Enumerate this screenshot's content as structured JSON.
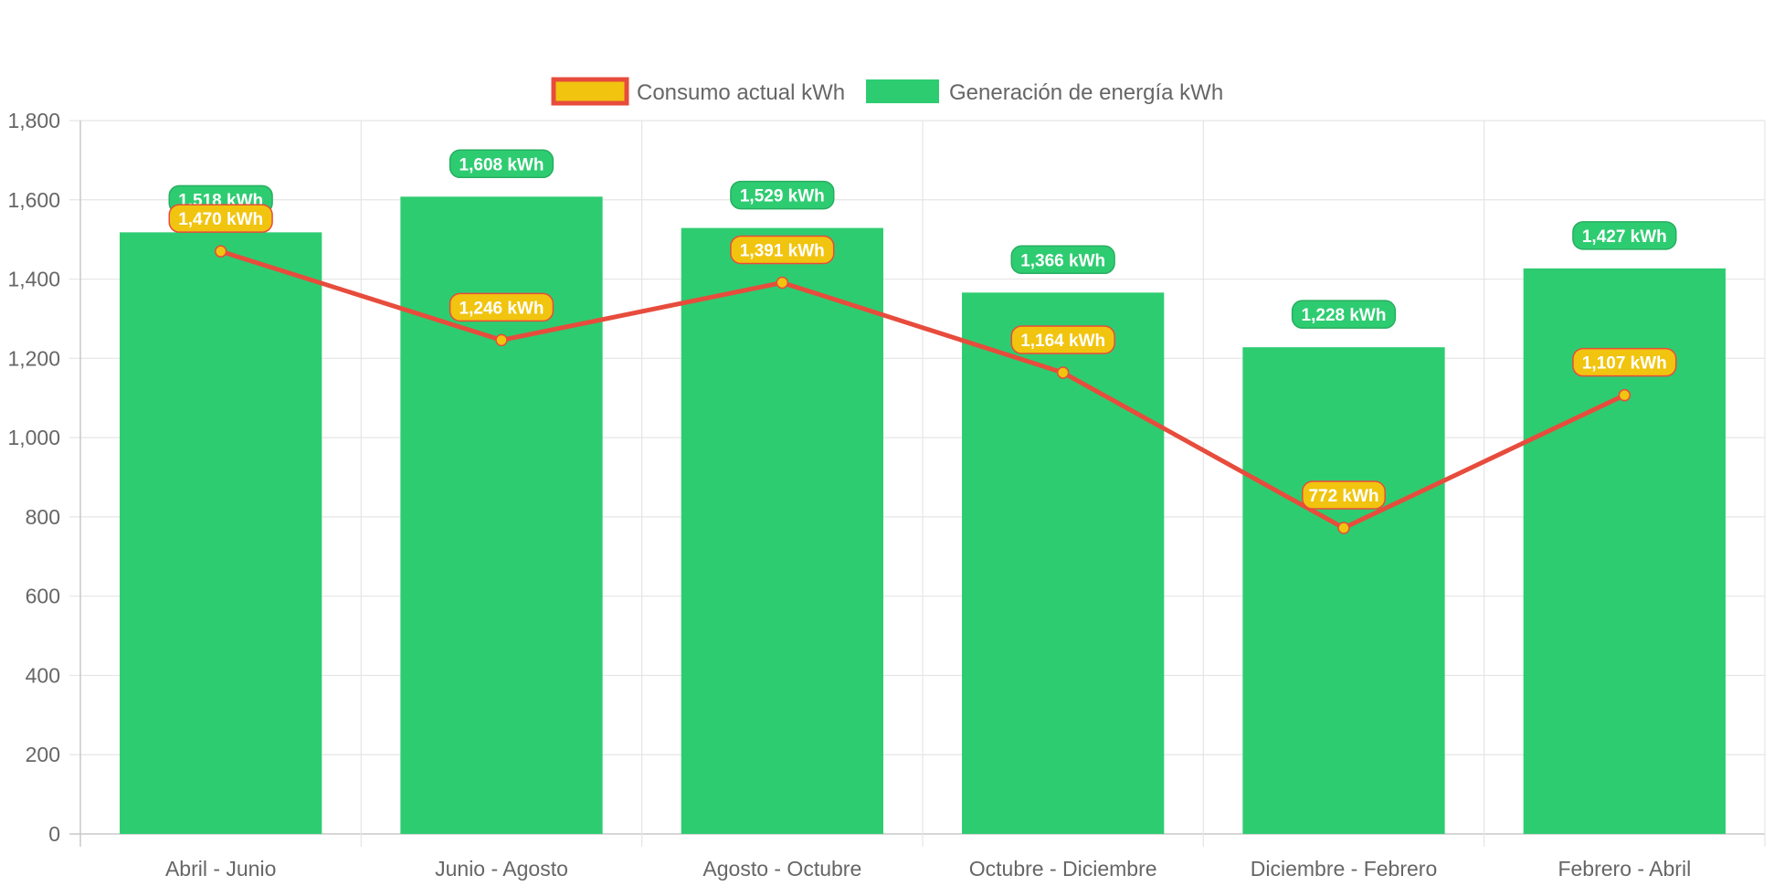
{
  "chart_data": {
    "type": "bar",
    "categories": [
      "Abril - Junio",
      "Junio - Agosto",
      "Agosto - Octubre",
      "Octubre - Diciembre",
      "Diciembre - Febrero",
      "Febrero - Abril"
    ],
    "series": [
      {
        "name": "Consumo actual kWh",
        "type": "line",
        "values": [
          1470,
          1246,
          1391,
          1164,
          772,
          1107
        ],
        "labels": [
          "1,470 kWh",
          "1,246 kWh",
          "1,391 kWh",
          "1,164 kWh",
          "772 kWh",
          "1,107 kWh"
        ],
        "line_color": "#e74c3c",
        "point_color": "#f1c40f"
      },
      {
        "name": "Generación de energía kWh",
        "type": "bar",
        "values": [
          1518,
          1608,
          1529,
          1366,
          1228,
          1427
        ],
        "labels": [
          "1,518 kWh",
          "1,608 kWh",
          "1,529 kWh",
          "1,366 kWh",
          "1,228 kWh",
          "1,427 kWh"
        ],
        "color": "#2ecc71"
      }
    ],
    "yticks": [
      "0",
      "200",
      "400",
      "600",
      "800",
      "1,000",
      "1,200",
      "1,400",
      "1,600",
      "1,800"
    ],
    "ylim": [
      0,
      1800
    ],
    "grid": true,
    "legend_position": "top"
  }
}
